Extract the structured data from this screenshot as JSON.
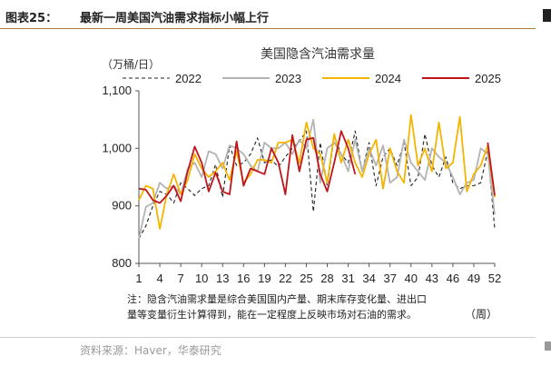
{
  "header": {
    "figure_number": "图表25：",
    "figure_title": "最新一周美国汽油需求指标小幅上行"
  },
  "footer": {
    "source": "资料来源：Haver，华泰研究"
  },
  "chart_data": {
    "type": "line",
    "title": "美国隐含汽油需求量",
    "ylabel": "（万桶/日）",
    "xlabel": "（周）",
    "ylim": [
      800,
      1100
    ],
    "yticks": [
      800,
      900,
      1000,
      1100
    ],
    "ytick_labels": [
      "800",
      "900",
      "1,000",
      "1,100"
    ],
    "xlim": [
      1,
      52
    ],
    "xticks": [
      1,
      4,
      7,
      10,
      13,
      16,
      19,
      22,
      25,
      28,
      31,
      34,
      37,
      40,
      43,
      46,
      49,
      52
    ],
    "grid": false,
    "legend_position": "top",
    "note_lines": [
      "注：隐含汽油需求量是综合美国国内产量、期末库存变化量、进出口",
      "量等变量衍生计算得到，能在一定程度上反映市场对石油的需求。"
    ],
    "series": [
      {
        "name": "2022",
        "color": "#222222",
        "dash": "4,3",
        "values": [
          843,
          865,
          900,
          925,
          920,
          905,
          940,
          930,
          918,
          930,
          935,
          972,
          915,
          1005,
          970,
          975,
          990,
          1018,
          975,
          980,
          968,
          985,
          1000,
          1012,
          1030,
          890,
          1010,
          935,
          1020,
          990,
          975,
          1030,
          960,
          1010,
          935,
          985,
          1000,
          970,
          1010,
          935,
          950,
          1025,
          970,
          950,
          985,
          940,
          930,
          935,
          935,
          940,
          995,
          860
        ]
      },
      {
        "name": "2023",
        "color": "#b3b3b3",
        "dash": "",
        "values": [
          843,
          898,
          905,
          940,
          930,
          935,
          920,
          965,
          975,
          950,
          995,
          990,
          965,
          1005,
          1000,
          990,
          970,
          960,
          1010,
          1000,
          1000,
          1010,
          990,
          1015,
          1000,
          1050,
          940,
          1000,
          1010,
          990,
          960,
          1015,
          960,
          1000,
          970,
          1005,
          940,
          950,
          1015,
          975,
          960,
          945,
          1000,
          985,
          975,
          950,
          920,
          940,
          945,
          1000,
          990,
          885
        ]
      },
      {
        "name": "2024",
        "color": "#f5b400",
        "dash": "",
        "values": [
          910,
          935,
          930,
          860,
          920,
          955,
          920,
          945,
          990,
          965,
          950,
          960,
          975,
          945,
          995,
          940,
          955,
          980,
          980,
          975,
          1010,
          1010,
          1015,
          975,
          1045,
          1000,
          990,
          940,
          1025,
          975,
          1015,
          975,
          950,
          990,
          1015,
          930,
          1000,
          960,
          940,
          1058,
          970,
          1000,
          960,
          1045,
          965,
          975,
          1055,
          925,
          955,
          970,
          1005,
          915
        ]
      },
      {
        "name": "2025",
        "color": "#c0141a",
        "dash": "",
        "values": [
          930,
          928,
          910,
          905,
          918,
          935,
          908,
          960,
          1003,
          975,
          925,
          958,
          925,
          920,
          1012,
          935,
          965,
          960,
          955,
          1000,
          975,
          920,
          1023,
          960,
          1015,
          1018,
          955,
          925,
          975,
          1030,
          1000,
          955,
          null,
          null,
          null,
          null,
          null,
          null,
          null,
          null,
          null,
          null,
          null,
          null,
          null,
          null,
          null,
          null,
          null,
          null,
          1010,
          918
        ]
      }
    ]
  }
}
